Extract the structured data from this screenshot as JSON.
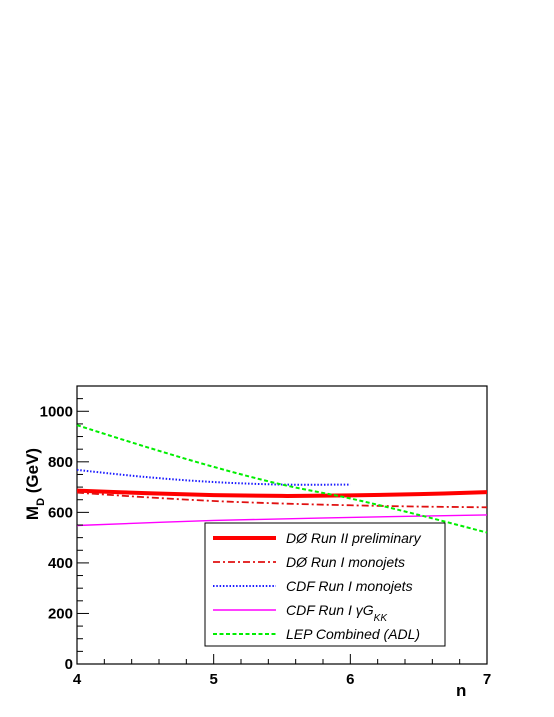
{
  "chart_data": {
    "type": "line",
    "xlabel": "n",
    "ylabel": "M",
    "ylabel_sub": "D",
    "ylabel_unit": " (GeV)",
    "xlim": [
      4,
      7
    ],
    "ylim": [
      0,
      1100
    ],
    "x_ticks": [
      4,
      5,
      6,
      7
    ],
    "y_ticks": [
      0,
      200,
      400,
      600,
      800,
      1000
    ],
    "grid": false,
    "legend_position": "bottom-right",
    "series": [
      {
        "name": "DØ Run II preliminary",
        "color": "#ff0000",
        "style": "solid-thick",
        "x": [
          4,
          4.5,
          5,
          5.5,
          6,
          6.5,
          7
        ],
        "y": [
          686,
          676,
          668,
          665,
          667,
          672,
          680
        ]
      },
      {
        "name": "DØ Run I monojets",
        "color": "#e01010",
        "style": "dashdot",
        "x": [
          4,
          4.5,
          5,
          5.5,
          6,
          6.5,
          7
        ],
        "y": [
          678,
          660,
          645,
          635,
          628,
          623,
          620
        ]
      },
      {
        "name": "CDF Run I monojets",
        "color": "#1a1aff",
        "style": "dotted",
        "x": [
          4,
          4.5,
          5,
          5.5,
          6
        ],
        "y": [
          768,
          740,
          720,
          710,
          710
        ]
      },
      {
        "name_parts": [
          "CDF Run I ",
          "γG",
          "KK"
        ],
        "color": "#ff00ff",
        "style": "solid-thin",
        "x": [
          4,
          5,
          6,
          7
        ],
        "y": [
          548,
          568,
          580,
          590
        ]
      },
      {
        "name": "LEP Combined (ADL)",
        "color": "#00ee00",
        "style": "dashed",
        "x": [
          4,
          4.5,
          5,
          5.5,
          6,
          6.5,
          7
        ],
        "y": [
          945,
          860,
          780,
          710,
          655,
          590,
          520
        ]
      }
    ]
  }
}
